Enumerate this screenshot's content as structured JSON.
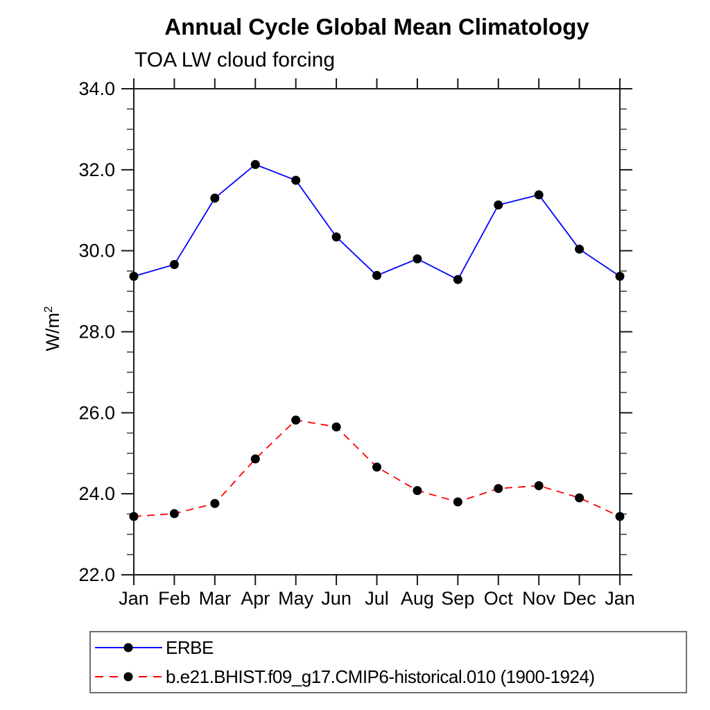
{
  "title": "Annual Cycle Global Mean Climatology",
  "subtitle": "TOA LW cloud forcing",
  "ylabel": {
    "base": "W/m",
    "exp": "2"
  },
  "chart_data": {
    "type": "line",
    "categories": [
      "Jan",
      "Feb",
      "Mar",
      "Apr",
      "May",
      "Jun",
      "Jul",
      "Aug",
      "Sep",
      "Oct",
      "Nov",
      "Dec",
      "Jan"
    ],
    "series": [
      {
        "name": "ERBE",
        "color": "#0000ff",
        "line_style": "solid",
        "values": [
          29.37,
          29.66,
          31.3,
          32.13,
          31.74,
          30.34,
          29.39,
          29.8,
          29.29,
          31.13,
          31.38,
          30.04,
          29.37
        ]
      },
      {
        "name": "b.e21.BHIST.f09_g17.CMIP6-historical.010 (1900-1924)",
        "color": "#ff0000",
        "line_style": "dashed",
        "values": [
          23.44,
          23.51,
          23.76,
          24.86,
          25.82,
          25.65,
          24.66,
          24.08,
          23.8,
          24.13,
          24.2,
          23.9,
          23.44
        ]
      }
    ],
    "marker": {
      "shape": "circle",
      "color": "#000000"
    },
    "xlabel": "",
    "ylabel": "W/m2",
    "ylim": [
      22,
      34
    ],
    "ytick_major": [
      22,
      24,
      26,
      28,
      30,
      32,
      34
    ],
    "ytick_labels": [
      "22.0",
      "24.0",
      "26.0",
      "28.0",
      "30.0",
      "32.0",
      "34.0"
    ],
    "ytick_minor_step": 0.5,
    "grid": false,
    "legend_position": "bottom-left-box"
  }
}
